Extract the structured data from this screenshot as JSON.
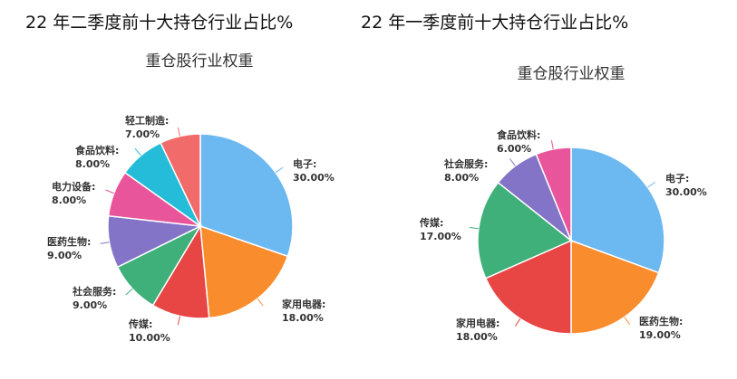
{
  "headings": {
    "left": "22 年二季度前十大持仓行业占比%",
    "right": "22 年一季度前十大持仓行业占比%"
  },
  "chart_data": [
    {
      "type": "pie",
      "title": "重仓股行业权重",
      "slices": [
        {
          "name": "电子",
          "value": 30.0,
          "label": "30.00%",
          "color": "#6cb8f0"
        },
        {
          "name": "家用电器",
          "value": 18.0,
          "label": "18.00%",
          "color": "#f98d2e"
        },
        {
          "name": "传媒",
          "value": 10.0,
          "label": "10.00%",
          "color": "#e84545"
        },
        {
          "name": "社会服务",
          "value": 9.0,
          "label": "9.00%",
          "color": "#40b07a"
        },
        {
          "name": "医药生物",
          "value": 9.0,
          "label": "9.00%",
          "color": "#8474c8"
        },
        {
          "name": "电力设备",
          "value": 8.0,
          "label": "8.00%",
          "color": "#e9559a"
        },
        {
          "name": "食品饮料",
          "value": 8.0,
          "label": "8.00%",
          "color": "#24bcd9"
        },
        {
          "name": "轻工制造",
          "value": 7.0,
          "label": "7.00%",
          "color": "#f26b6b"
        }
      ]
    },
    {
      "type": "pie",
      "title": "重仓股行业权重",
      "slices": [
        {
          "name": "电子",
          "value": 30.0,
          "label": "30.00%",
          "color": "#6cb8f0"
        },
        {
          "name": "医药生物",
          "value": 19.0,
          "label": "19.00%",
          "color": "#f98d2e"
        },
        {
          "name": "家用电器",
          "value": 18.0,
          "label": "18.00%",
          "color": "#e84545"
        },
        {
          "name": "传媒",
          "value": 17.0,
          "label": "17.00%",
          "color": "#40b07a"
        },
        {
          "name": "社会服务",
          "value": 8.0,
          "label": "8.00%",
          "color": "#8474c8"
        },
        {
          "name": "食品饮料",
          "value": 6.0,
          "label": "6.00%",
          "color": "#e9559a"
        }
      ]
    }
  ]
}
